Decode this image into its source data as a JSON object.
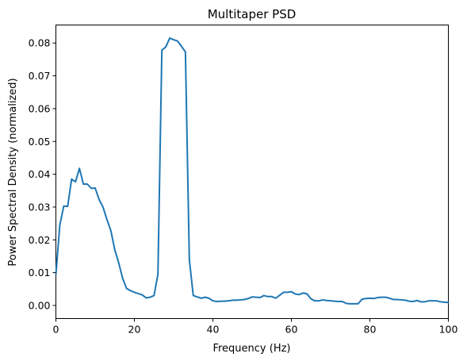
{
  "chart_data": {
    "type": "line",
    "title": "Multitaper PSD",
    "xlabel": "Frequency (Hz)",
    "ylabel": "Power Spectral Density (normalized)",
    "xlim": [
      0,
      100
    ],
    "ylim": [
      -0.004,
      0.0855
    ],
    "xticks": [
      0,
      20,
      40,
      60,
      80,
      100
    ],
    "xtick_labels": [
      "0",
      "20",
      "40",
      "60",
      "80",
      "100"
    ],
    "yticks": [
      0.0,
      0.01,
      0.02,
      0.03,
      0.04,
      0.05,
      0.06,
      0.07,
      0.08
    ],
    "ytick_labels": [
      "0.00",
      "0.01",
      "0.02",
      "0.03",
      "0.04",
      "0.05",
      "0.06",
      "0.07",
      "0.08"
    ],
    "grid": false,
    "series": [
      {
        "color": "#1f77b4",
        "x": [
          0,
          1,
          2,
          3,
          4,
          5,
          6,
          7,
          8,
          9,
          10,
          11,
          12,
          13,
          14,
          15,
          16,
          17,
          18,
          19,
          20,
          21,
          22,
          23,
          24,
          25,
          26,
          27,
          28,
          29,
          30,
          31,
          32,
          33,
          34,
          35,
          36,
          37,
          38,
          39,
          40,
          41,
          42,
          43,
          44,
          45,
          46,
          47,
          48,
          49,
          50,
          51,
          52,
          53,
          54,
          55,
          56,
          57,
          58,
          59,
          60,
          61,
          62,
          63,
          64,
          65,
          66,
          67,
          68,
          69,
          70,
          71,
          72,
          73,
          74,
          75,
          76,
          77,
          78,
          79,
          80,
          81,
          82,
          83,
          84,
          85,
          86,
          87,
          88,
          89,
          90,
          91,
          92,
          93,
          94,
          95,
          96,
          97,
          98,
          99,
          100
        ],
        "y": [
          0.0095,
          0.0245,
          0.0303,
          0.0302,
          0.0385,
          0.0377,
          0.0418,
          0.037,
          0.037,
          0.0357,
          0.0358,
          0.0323,
          0.03,
          0.0262,
          0.0228,
          0.017,
          0.013,
          0.0083,
          0.0052,
          0.0045,
          0.004,
          0.0036,
          0.0032,
          0.0023,
          0.0025,
          0.003,
          0.0095,
          0.0778,
          0.0788,
          0.0815,
          0.081,
          0.0806,
          0.079,
          0.0773,
          0.014,
          0.003,
          0.0026,
          0.0022,
          0.0025,
          0.0022,
          0.0014,
          0.0012,
          0.0013,
          0.0013,
          0.0014,
          0.0016,
          0.0016,
          0.0017,
          0.0018,
          0.0021,
          0.0026,
          0.0025,
          0.0024,
          0.003,
          0.0027,
          0.0027,
          0.0022,
          0.0031,
          0.004,
          0.004,
          0.0042,
          0.0035,
          0.0033,
          0.0038,
          0.0035,
          0.002,
          0.0014,
          0.0014,
          0.0017,
          0.0015,
          0.0014,
          0.0013,
          0.0012,
          0.0012,
          0.0006,
          0.0005,
          0.0005,
          0.0005,
          0.0019,
          0.0021,
          0.0022,
          0.0021,
          0.0024,
          0.0025,
          0.0025,
          0.0022,
          0.0018,
          0.0018,
          0.0017,
          0.0016,
          0.0013,
          0.0012,
          0.0015,
          0.0011,
          0.0011,
          0.0014,
          0.0014,
          0.0014,
          0.0011,
          0.001,
          0.0009
        ]
      }
    ]
  }
}
